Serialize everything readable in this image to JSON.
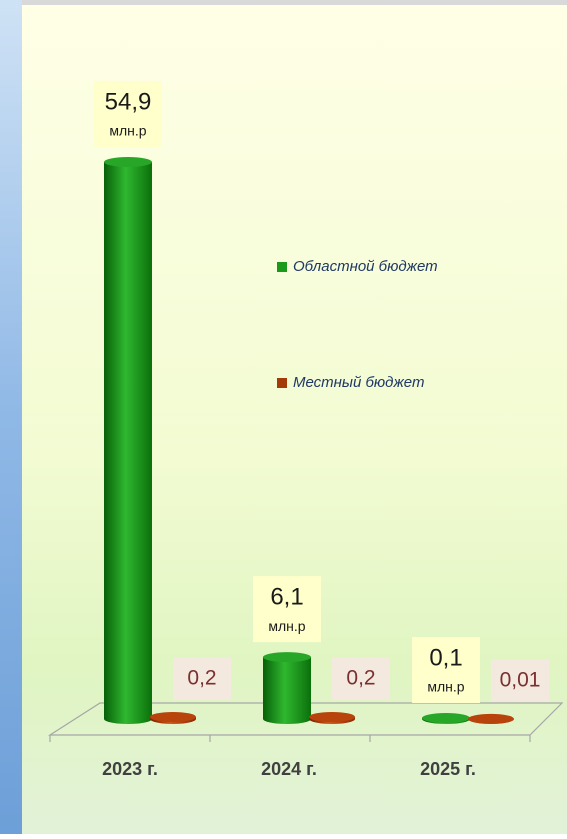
{
  "chart_data": {
    "type": "bar",
    "categories": [
      "2023 г.",
      "2024 г.",
      "2025 г."
    ],
    "series": [
      {
        "name": "Областной бюджет",
        "color": "#1a9a1a",
        "values": [
          54.9,
          6.1,
          0.1
        ],
        "value_labels": [
          "54,9",
          "6,1",
          "0,1"
        ],
        "unit": "млн.р"
      },
      {
        "name": "Местный бюджет",
        "color": "#a33a08",
        "values": [
          0.2,
          0.2,
          0.01
        ],
        "value_labels": [
          "0,2",
          "0,2",
          "0,01"
        ]
      }
    ]
  }
}
